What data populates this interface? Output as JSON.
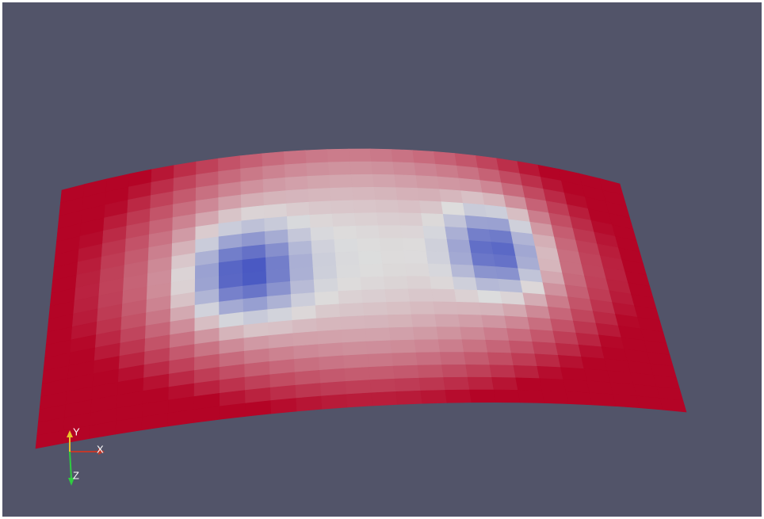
{
  "orientation_axes": {
    "labels": {
      "y": "Y",
      "x": "X",
      "z": "Z"
    }
  }
}
